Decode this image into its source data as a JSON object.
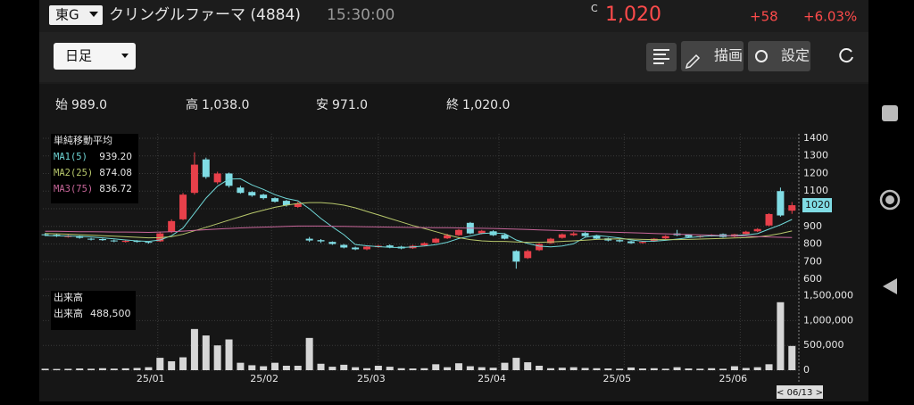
{
  "header": {
    "market": "東G",
    "name": "クリングルファーマ (4884)",
    "time": "15:30:00",
    "flag": "C",
    "price": "1,020",
    "change": "+58",
    "change_pct": "+6.03%"
  },
  "toolbar": {
    "period": "日足",
    "draw": "描画",
    "settings": "設定"
  },
  "ohlc": [
    {
      "label": "始",
      "value": "989.0"
    },
    {
      "label": "高",
      "value": "1,038.0"
    },
    {
      "label": "安",
      "value": "971.0"
    },
    {
      "label": "終",
      "value": "1,020.0"
    }
  ],
  "chart_data": [
    {
      "type": "candlestick",
      "legend_title": "単純移動平均",
      "up_color": "#e8404a",
      "down_color": "#80dce4",
      "grid": true,
      "xlim": [
        -0.2,
        65.6
      ],
      "ylim": [
        575,
        1425
      ],
      "yticks": [
        600,
        700,
        800,
        900,
        1000,
        1100,
        1200,
        1300,
        1400
      ],
      "xticks": [
        {
          "value": 9.8,
          "label": "25/01"
        },
        {
          "value": 19.7,
          "label": "25/02"
        },
        {
          "value": 29.0,
          "label": "25/03"
        },
        {
          "value": 39.5,
          "label": "25/04"
        },
        {
          "value": 50.4,
          "label": "25/05"
        },
        {
          "value": 60.5,
          "label": "25/06"
        }
      ],
      "x_tag": "< 06/13 >",
      "open": [
        855,
        852,
        840,
        845,
        830,
        828,
        820,
        812,
        818,
        812,
        815,
        870,
        940,
        1090,
        1280,
        1150,
        1200,
        1120,
        1095,
        1080,
        1060,
        1045,
        1010,
        830,
        822,
        812,
        795,
        780,
        770,
        782,
        792,
        785,
        776,
        792,
        808,
        832,
        850,
        920,
        860,
        872,
        852,
        760,
        720,
        765,
        805,
        835,
        850,
        862,
        848,
        832,
        822,
        815,
        806,
        815,
        832,
        860,
        852,
        838,
        846,
        856,
        842,
        856,
        872,
        905,
        1100,
        989
      ],
      "high": [
        862,
        858,
        852,
        848,
        835,
        832,
        825,
        822,
        822,
        815,
        870,
        940,
        1090,
        1320,
        1290,
        1210,
        1205,
        1130,
        1100,
        1085,
        1065,
        1050,
        1040,
        840,
        828,
        815,
        800,
        785,
        790,
        795,
        798,
        790,
        795,
        810,
        835,
        858,
        885,
        925,
        880,
        878,
        856,
        765,
        768,
        805,
        835,
        860,
        868,
        868,
        852,
        836,
        826,
        818,
        815,
        834,
        850,
        880,
        856,
        848,
        856,
        860,
        858,
        875,
        890,
        975,
        1120,
        1038
      ],
      "low": [
        845,
        840,
        836,
        830,
        820,
        818,
        810,
        808,
        808,
        802,
        812,
        862,
        935,
        1080,
        1170,
        1140,
        1120,
        1085,
        1068,
        1052,
        1035,
        1012,
        1005,
        812,
        806,
        795,
        775,
        765,
        765,
        778,
        776,
        770,
        772,
        788,
        804,
        828,
        846,
        855,
        855,
        845,
        826,
        660,
        715,
        760,
        800,
        830,
        845,
        840,
        826,
        815,
        810,
        800,
        802,
        812,
        828,
        845,
        836,
        835,
        842,
        836,
        838,
        852,
        868,
        900,
        955,
        971
      ],
      "close": [
        850,
        845,
        848,
        835,
        825,
        822,
        815,
        818,
        812,
        808,
        860,
        930,
        1080,
        1250,
        1180,
        1200,
        1130,
        1090,
        1075,
        1060,
        1040,
        1020,
        1030,
        820,
        815,
        800,
        780,
        770,
        785,
        790,
        780,
        775,
        790,
        805,
        830,
        850,
        880,
        860,
        875,
        850,
        830,
        700,
        760,
        800,
        830,
        855,
        860,
        845,
        830,
        820,
        815,
        805,
        812,
        830,
        845,
        850,
        840,
        845,
        852,
        840,
        855,
        870,
        885,
        970,
        962,
        1020
      ],
      "series": [
        {
          "name": "MA1(5)",
          "color": "#6fd6d6",
          "legend_value": "939.20",
          "values": [
            848,
            846,
            845,
            843,
            840,
            835,
            829,
            823,
            818,
            815,
            823,
            847,
            890,
            975,
            1060,
            1128,
            1168,
            1170,
            1135,
            1110,
            1080,
            1058,
            1045,
            1000,
            945,
            897,
            853,
            797,
            790,
            785,
            781,
            780,
            784,
            789,
            796,
            810,
            831,
            845,
            860,
            863,
            859,
            823,
            803,
            788,
            784,
            789,
            801,
            838,
            848,
            842,
            834,
            823,
            816,
            816,
            821,
            828,
            836,
            842,
            846,
            845,
            848,
            852,
            859,
            884,
            909,
            939.2
          ]
        },
        {
          "name": "MA2(25)",
          "color": "#b8c86c",
          "legend_value": "874.08",
          "values": [
            860,
            858,
            856,
            853,
            850,
            847,
            844,
            841,
            838,
            835,
            836,
            842,
            855,
            875,
            895,
            915,
            935,
            955,
            975,
            992,
            1008,
            1020,
            1030,
            1035,
            1035,
            1030,
            1020,
            1005,
            985,
            965,
            945,
            925,
            905,
            888,
            870,
            852,
            836,
            825,
            818,
            815,
            815,
            812,
            810,
            810,
            812,
            815,
            818,
            822,
            826,
            828,
            829,
            828,
            826,
            825,
            825,
            825,
            826,
            828,
            830,
            832,
            834,
            836,
            840,
            848,
            860,
            874.08
          ]
        },
        {
          "name": "MA3(75)",
          "color": "#c8669a",
          "legend_value": "836.72",
          "values": [
            872,
            872,
            871,
            870,
            870,
            869,
            868,
            868,
            867,
            866,
            868,
            870,
            873,
            877,
            881,
            885,
            888,
            891,
            894,
            896,
            898,
            900,
            902,
            902,
            902,
            901,
            900,
            899,
            898,
            897,
            896,
            895,
            894,
            893,
            892,
            892,
            891,
            890,
            889,
            888,
            886,
            884,
            882,
            880,
            878,
            876,
            874,
            872,
            870,
            868,
            866,
            864,
            862,
            860,
            858,
            856,
            854,
            852,
            850,
            848,
            846,
            844,
            842,
            840,
            838,
            836.72
          ]
        }
      ]
    },
    {
      "type": "bar",
      "legend_title": "出来高",
      "legend_name": "出来高",
      "legend_value": "488,500",
      "color": "#d6d6d6",
      "grid": true,
      "xlim": [
        -0.2,
        65.6
      ],
      "ylim": [
        0,
        1600000
      ],
      "yticks": [
        0,
        {
          "value": 500000,
          "label": "500,000"
        },
        {
          "value": 1000000,
          "label": "1,000,000"
        },
        {
          "value": 1500000,
          "label": "1,500,000"
        }
      ],
      "values": [
        30000,
        25000,
        28000,
        35000,
        30000,
        40000,
        32000,
        38000,
        45000,
        60000,
        250000,
        180000,
        260000,
        830000,
        700000,
        500000,
        620000,
        150000,
        100000,
        80000,
        150000,
        90000,
        90000,
        650000,
        130000,
        70000,
        110000,
        60000,
        40000,
        90000,
        70000,
        40000,
        35000,
        40000,
        120000,
        60000,
        140000,
        80000,
        60000,
        50000,
        150000,
        250000,
        160000,
        90000,
        40000,
        50000,
        60000,
        45000,
        40000,
        35000,
        30000,
        55000,
        35000,
        40000,
        30000,
        60000,
        35000,
        30000,
        40000,
        30000,
        80000,
        45000,
        60000,
        120000,
        1370000,
        488500
      ]
    }
  ]
}
